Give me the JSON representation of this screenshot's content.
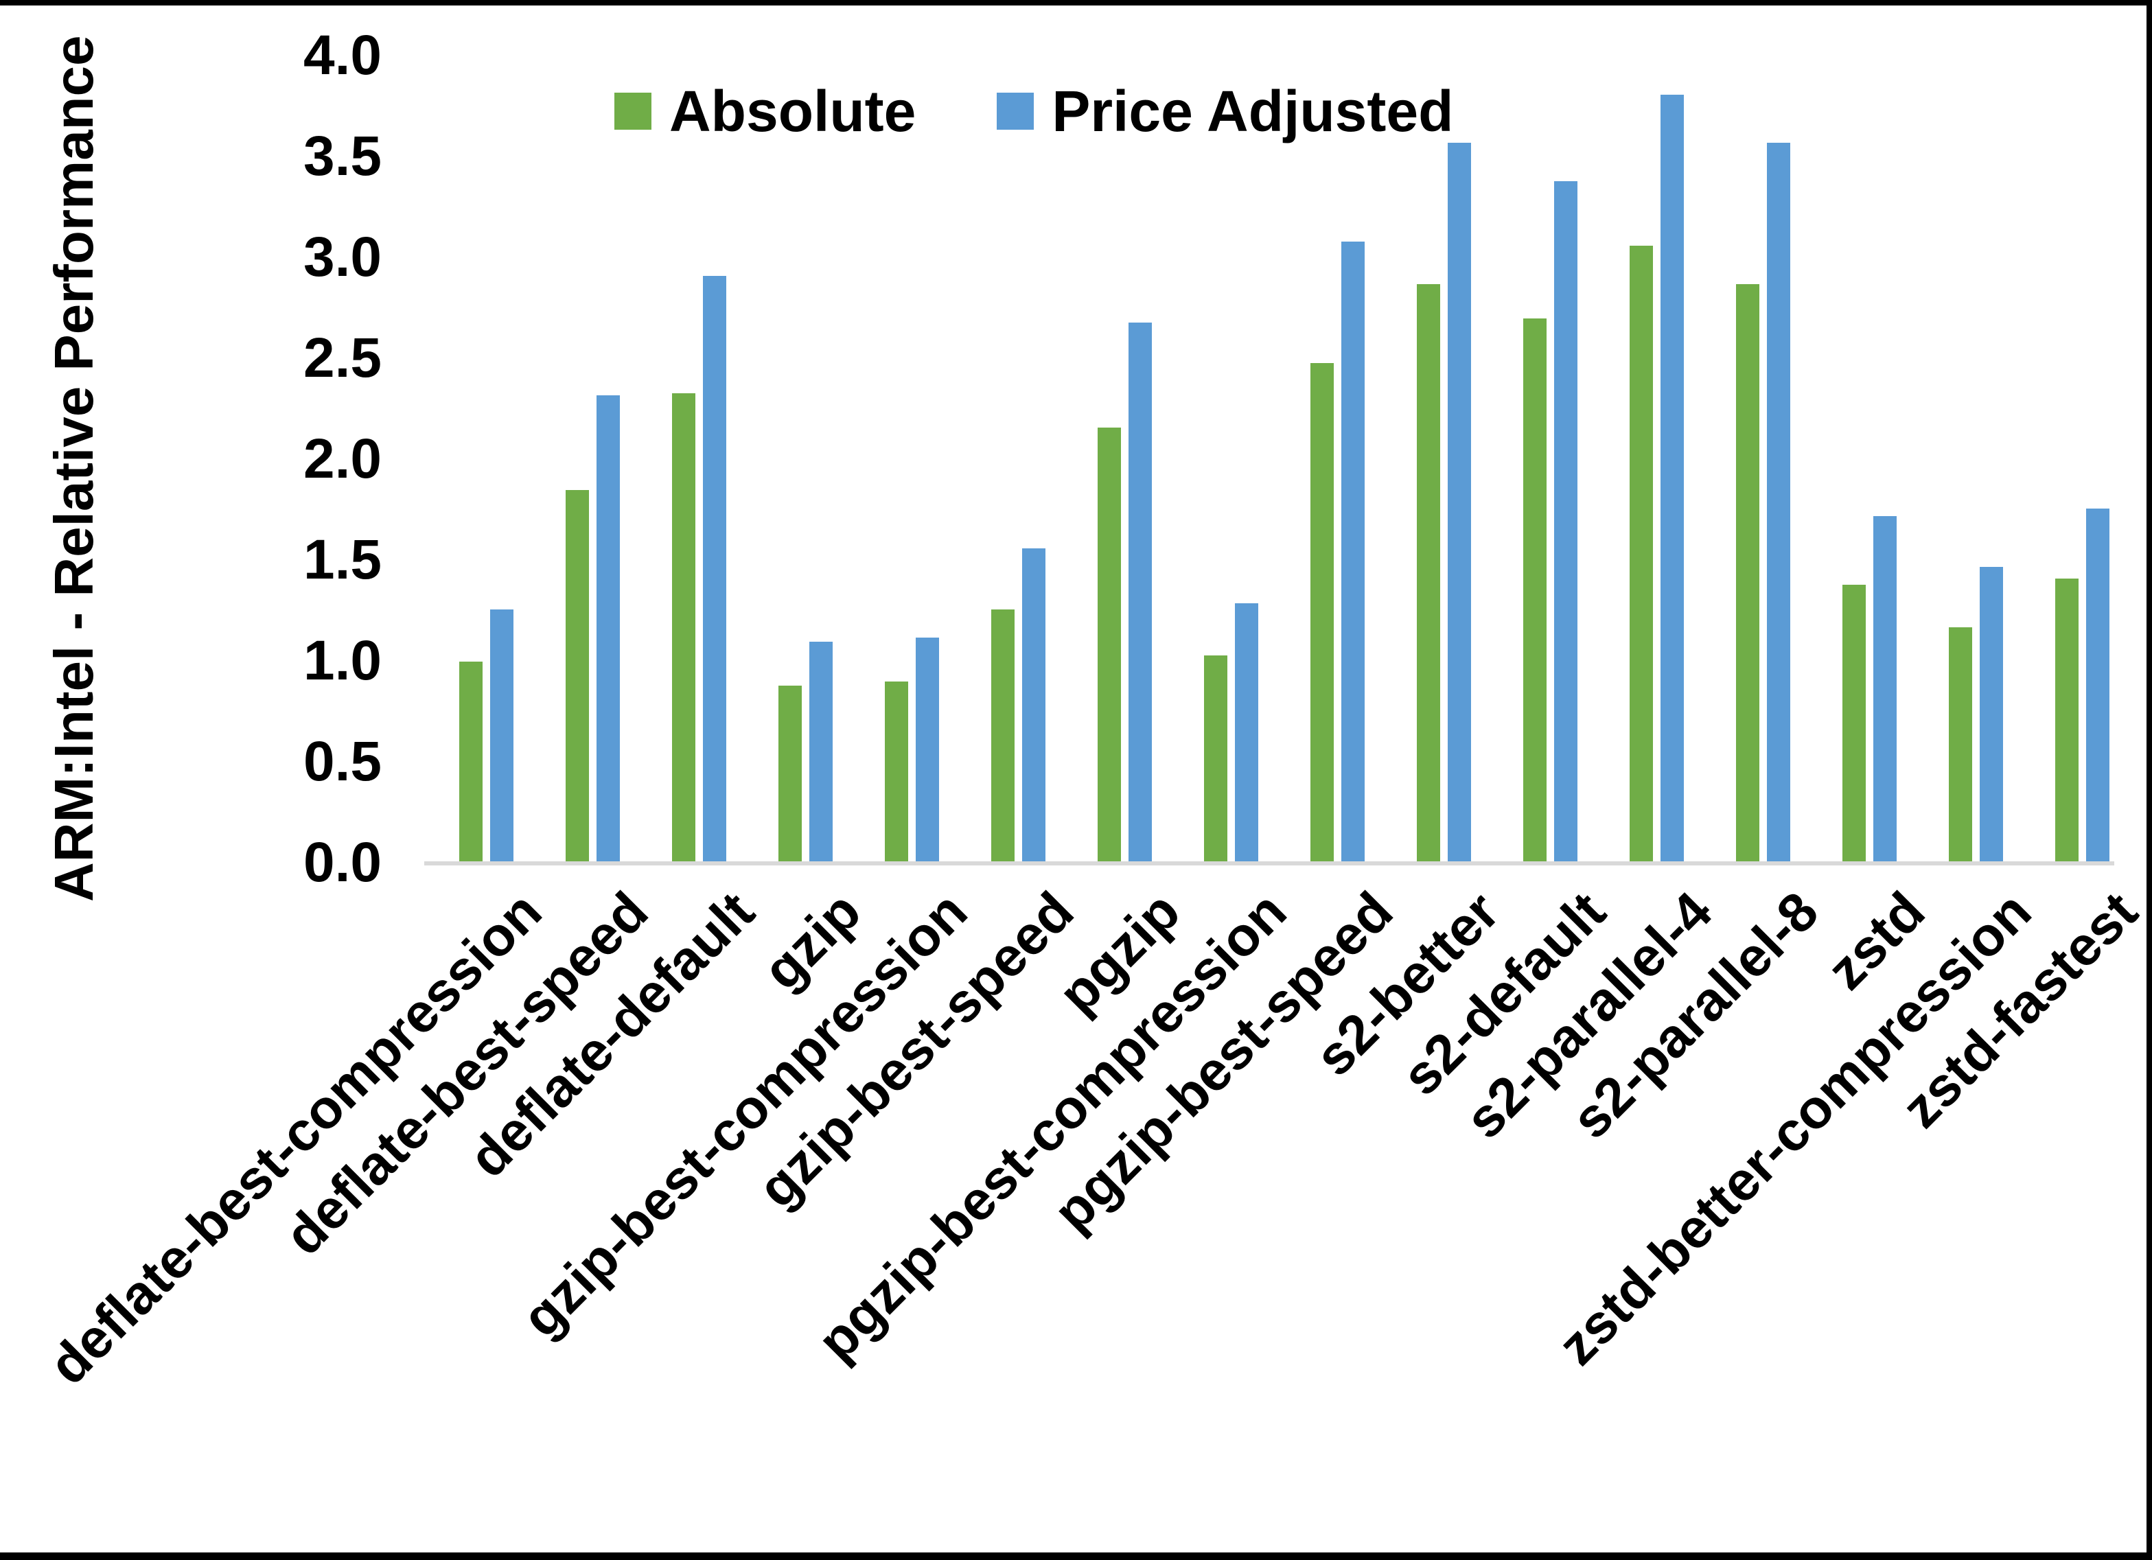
{
  "chart_data": {
    "type": "bar",
    "title": "",
    "xlabel": "",
    "ylabel": "ARM:Intel - Relative Performance",
    "ylim": [
      0.0,
      4.0
    ],
    "ytick_step": 0.5,
    "ytick_labels": [
      "0.0",
      "0.5",
      "1.0",
      "1.5",
      "2.0",
      "2.5",
      "3.0",
      "3.5",
      "4.0"
    ],
    "grid": false,
    "legend_position": "top-center",
    "axis_line_color": "#D9D9D9",
    "categories": [
      "deflate-best-compression",
      "deflate-best-speed",
      "deflate-default",
      "gzip",
      "gzip-best-compression",
      "gzip-best-speed",
      "pgzip",
      "pgzip-best-compression",
      "pgzip-best-speed",
      "s2-better",
      "s2-default",
      "s2-parallel-4",
      "s2-parallel-8",
      "zstd",
      "zstd-better-compression",
      "zstd-fastest"
    ],
    "series": [
      {
        "name": "Absolute",
        "color": "#70AD47",
        "values": [
          1.0,
          1.85,
          2.33,
          0.88,
          0.9,
          1.26,
          2.16,
          1.03,
          2.48,
          2.87,
          2.7,
          3.06,
          2.87,
          1.38,
          1.17,
          1.41
        ]
      },
      {
        "name": "Price Adjusted",
        "color": "#5B9BD5",
        "values": [
          1.26,
          2.32,
          2.91,
          1.1,
          1.12,
          1.56,
          2.68,
          1.29,
          3.08,
          3.57,
          3.38,
          3.81,
          3.57,
          1.72,
          1.47,
          1.76
        ]
      }
    ]
  }
}
